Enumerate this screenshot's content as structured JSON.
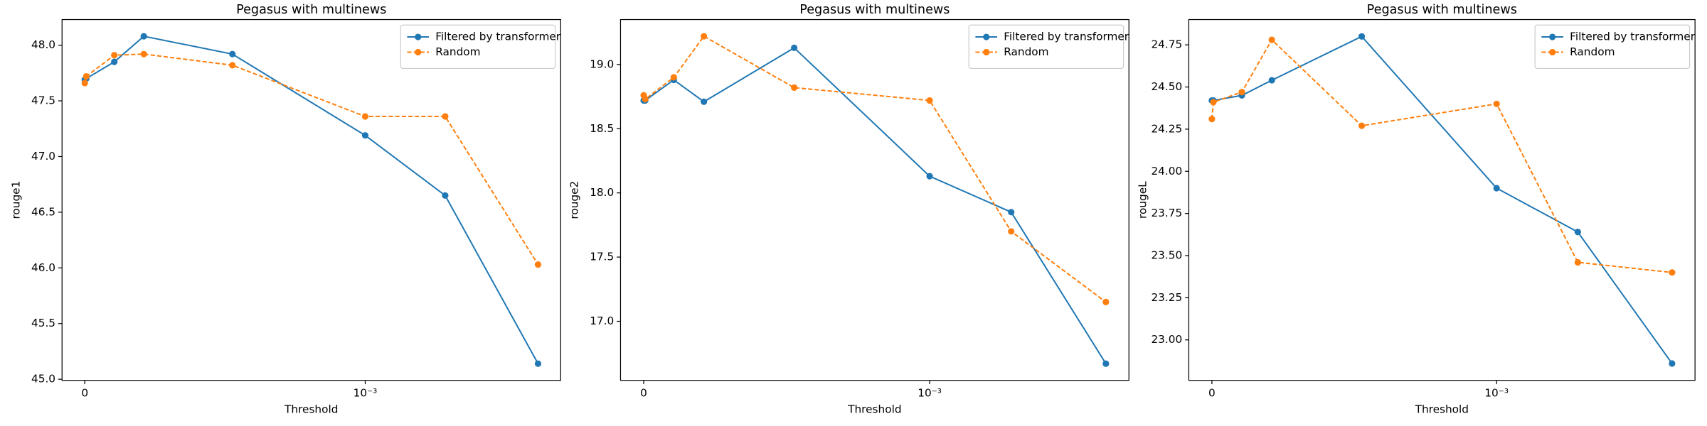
{
  "chart_data": [
    {
      "type": "line",
      "title": "Pegasus with multinews",
      "xlabel": "Threshold",
      "ylabel": "rouge1",
      "xscale": "symlog",
      "linthresh": 0.0001,
      "x": [
        0,
        1e-06,
        2e-05,
        4e-05,
        0.0001,
        0.001,
        0.004,
        0.02
      ],
      "xlim": [
        -1.54e-05,
        0.0296
      ],
      "xticks": [
        0,
        {
          "value": 0.001,
          "label": "10⁻³"
        }
      ],
      "ylim": [
        44.99,
        48.23
      ],
      "yticks": [
        {
          "value": 45,
          "label": "45.0"
        },
        45.5,
        {
          "value": 46,
          "label": "46.0"
        },
        46.5,
        {
          "value": 47,
          "label": "47.0"
        },
        47.5,
        {
          "value": 48,
          "label": "48.0"
        }
      ],
      "legend": "upper right",
      "series": [
        {
          "name": "Filtered by transformer",
          "color": "#1f77b4",
          "linestyle": "solid",
          "values": [
            47.69,
            47.7,
            47.85,
            48.08,
            47.92,
            47.19,
            46.65,
            45.14
          ]
        },
        {
          "name": "Random",
          "color": "#ff7f0e",
          "linestyle": "dashed",
          "values": [
            47.66,
            47.72,
            47.91,
            47.92,
            47.82,
            47.36,
            47.36,
            46.03
          ]
        }
      ]
    },
    {
      "type": "line",
      "title": "Pegasus with multinews",
      "xlabel": "Threshold",
      "ylabel": "rouge2",
      "xscale": "symlog",
      "linthresh": 0.0001,
      "x": [
        0,
        1e-06,
        2e-05,
        4e-05,
        0.0001,
        0.001,
        0.004,
        0.02
      ],
      "xlim": [
        -1.54e-05,
        0.0296
      ],
      "xticks": [
        0,
        {
          "value": 0.001,
          "label": "10⁻³"
        }
      ],
      "ylim": [
        16.54,
        19.35
      ],
      "yticks": [
        {
          "value": 17,
          "label": "17.0"
        },
        17.5,
        {
          "value": 18,
          "label": "18.0"
        },
        18.5,
        {
          "value": 19,
          "label": "19.0"
        }
      ],
      "legend": "upper right",
      "series": [
        {
          "name": "Filtered by transformer",
          "color": "#1f77b4",
          "linestyle": "solid",
          "values": [
            18.72,
            18.72,
            18.88,
            18.71,
            19.13,
            18.13,
            17.85,
            16.67
          ]
        },
        {
          "name": "Random",
          "color": "#ff7f0e",
          "linestyle": "dashed",
          "values": [
            18.76,
            18.73,
            18.9,
            19.22,
            18.82,
            18.72,
            17.7,
            17.15
          ]
        }
      ]
    },
    {
      "type": "line",
      "title": "Pegasus with multinews",
      "xlabel": "Threshold",
      "ylabel": "rougeL",
      "xscale": "symlog",
      "linthresh": 0.0001,
      "x": [
        0,
        1e-06,
        2e-05,
        4e-05,
        0.0001,
        0.001,
        0.004,
        0.02
      ],
      "xlim": [
        -1.54e-05,
        0.0296
      ],
      "xticks": [
        0,
        {
          "value": 0.001,
          "label": "10⁻³"
        }
      ],
      "ylim": [
        22.76,
        24.9
      ],
      "yticks": [
        {
          "value": 23,
          "label": "23.00"
        },
        23.25,
        {
          "value": 23.5,
          "label": "23.50"
        },
        23.75,
        {
          "value": 24,
          "label": "24.00"
        },
        24.25,
        {
          "value": 24.5,
          "label": "24.50"
        },
        24.75
      ],
      "legend": "upper right",
      "series": [
        {
          "name": "Filtered by transformer",
          "color": "#1f77b4",
          "linestyle": "solid",
          "values": [
            24.42,
            24.42,
            24.45,
            24.54,
            24.8,
            23.9,
            23.64,
            22.86
          ]
        },
        {
          "name": "Random",
          "color": "#ff7f0e",
          "linestyle": "dashed",
          "values": [
            24.31,
            24.41,
            24.47,
            24.78,
            24.27,
            24.4,
            23.46,
            23.4
          ]
        }
      ]
    }
  ]
}
